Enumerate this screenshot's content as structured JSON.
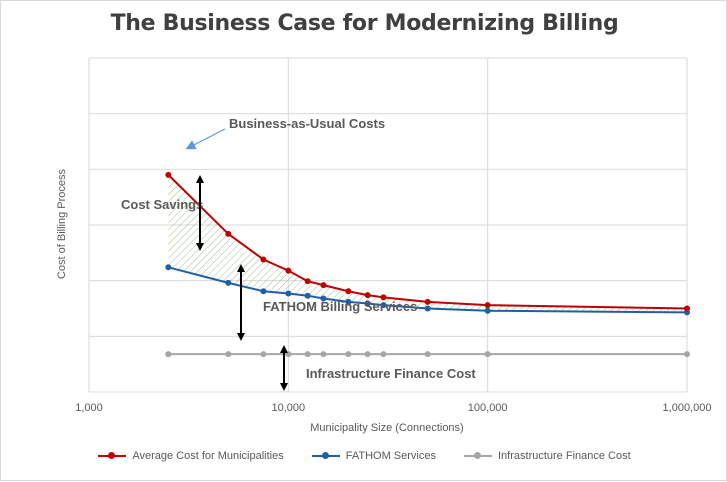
{
  "chart_data": {
    "type": "line",
    "title": "The Business Case for Modernizing Billing",
    "xlabel": "Municipality Size (Connections)",
    "ylabel": "Cost of Billing Process",
    "xscale": "log",
    "xlim": [
      1000,
      1000000
    ],
    "ylim": [
      0,
      6
    ],
    "x_tick_labels": [
      "1,000",
      "10,000",
      "100,000",
      "1,000,000"
    ],
    "x_tick_values": [
      1000,
      10000,
      100000,
      1000000
    ],
    "y_gridlines": [
      1,
      2,
      3,
      4,
      5,
      6
    ],
    "x": [
      2500,
      5000,
      7500,
      10000,
      12500,
      15000,
      20000,
      25000,
      30000,
      50000,
      100000,
      1000000
    ],
    "series": [
      {
        "name": "Average Cost for Municipalities",
        "color": "#c00000",
        "values": [
          3.9,
          2.84,
          2.38,
          2.18,
          1.99,
          1.92,
          1.81,
          1.74,
          1.7,
          1.62,
          1.56,
          1.5
        ]
      },
      {
        "name": "FATHOM Services",
        "color": "#1f5fa8",
        "values": [
          2.24,
          1.96,
          1.81,
          1.77,
          1.73,
          1.68,
          1.62,
          1.59,
          1.56,
          1.5,
          1.46,
          1.43
        ]
      },
      {
        "name": "Infrastructure Finance Cost",
        "color": "#a6a6a6",
        "values": [
          0.68,
          0.68,
          0.68,
          0.68,
          0.68,
          0.68,
          0.68,
          0.68,
          0.68,
          0.68,
          0.68,
          0.68
        ]
      }
    ],
    "annotations": [
      {
        "text": "Business-as-Usual Costs"
      },
      {
        "text": "Cost Savings"
      },
      {
        "text": "FATHOM Billing Services"
      },
      {
        "text": "Infrastructure Finance Cost"
      }
    ],
    "legend_position": "bottom"
  }
}
